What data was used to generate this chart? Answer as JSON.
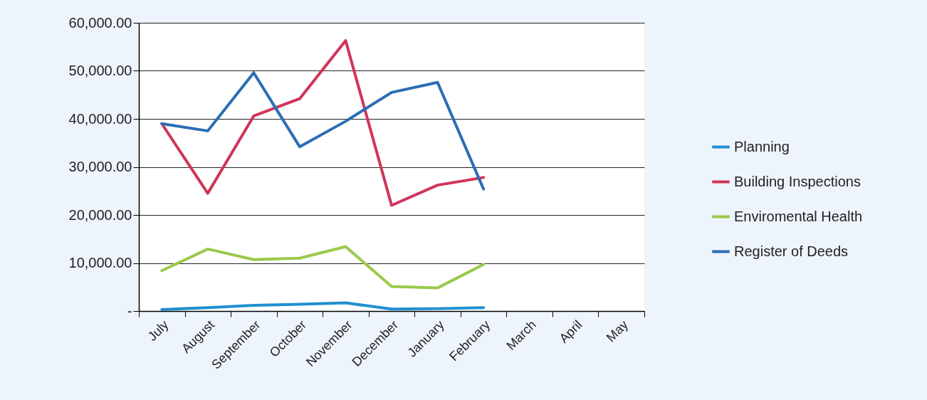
{
  "chart_data": {
    "type": "line",
    "categories": [
      "July",
      "August",
      "September",
      "October",
      "November",
      "December",
      "January",
      "February",
      "March",
      "April",
      "May"
    ],
    "series": [
      {
        "name": "Planning",
        "color": "#1f8fd0",
        "values": [
          300,
          700,
          1200,
          1400,
          1700,
          400,
          500,
          700,
          null,
          null,
          null
        ]
      },
      {
        "name": "Building Inspections",
        "color": "#d0345a",
        "values": [
          39000,
          24500,
          40600,
          44200,
          56300,
          22000,
          26200,
          27800,
          null,
          null,
          null
        ]
      },
      {
        "name": "Enviromental Health",
        "color": "#9bc94a",
        "values": [
          8400,
          12900,
          10700,
          11000,
          13400,
          5100,
          4800,
          9700,
          null,
          null,
          null
        ]
      },
      {
        "name": "Register of Deeds",
        "color": "#2a6db5",
        "values": [
          39000,
          37500,
          49600,
          34200,
          39500,
          45500,
          47600,
          25400,
          null,
          null,
          null
        ]
      }
    ],
    "ylim": [
      0,
      60000
    ],
    "yticks": [
      {
        "value": 0,
        "label": "-"
      },
      {
        "value": 10000,
        "label": "10,000.00"
      },
      {
        "value": 20000,
        "label": "20,000.00"
      },
      {
        "value": 30000,
        "label": "30,000.00"
      },
      {
        "value": 40000,
        "label": "40,000.00"
      },
      {
        "value": 50000,
        "label": "50,000.00"
      },
      {
        "value": 60000,
        "label": "60,000.00"
      }
    ],
    "grid": "y",
    "legend": "right",
    "marker": "none",
    "line_style": "solid"
  }
}
